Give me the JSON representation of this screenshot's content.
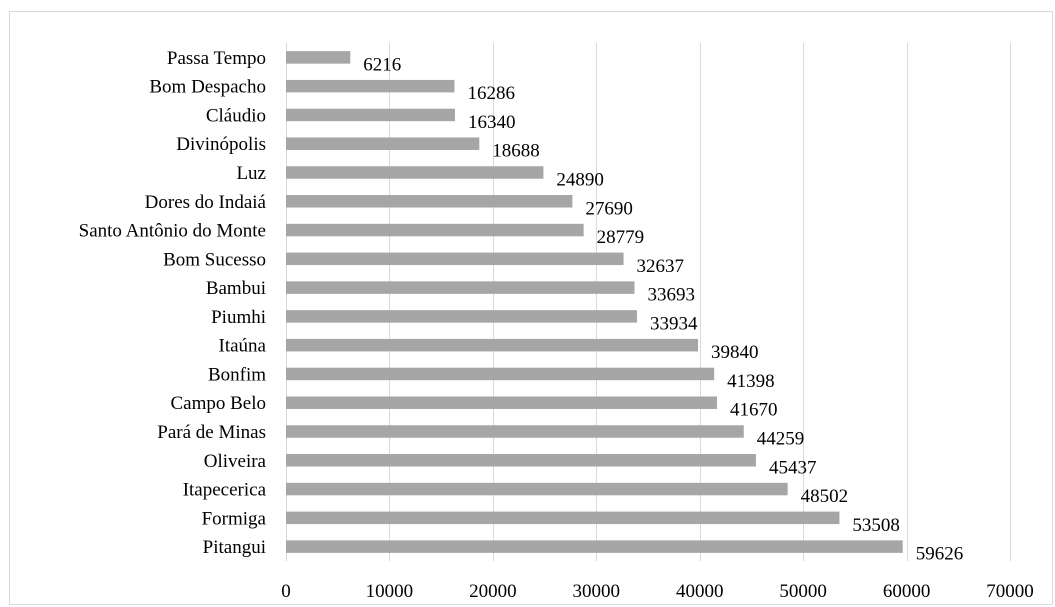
{
  "chart_data": {
    "type": "bar",
    "orientation": "horizontal",
    "title": "",
    "xlabel": "",
    "ylabel": "",
    "categories": [
      "Passa Tempo",
      "Bom Despacho",
      "Cláudio",
      "Divinópolis",
      "Luz",
      "Dores do Indaiá",
      "Santo Antônio do Monte",
      "Bom Sucesso",
      "Bambui",
      "Piumhi",
      "Itaúna",
      "Bonfim",
      "Campo Belo",
      "Pará de Minas",
      "Oliveira",
      "Itapecerica",
      "Formiga",
      "Pitangui"
    ],
    "values": [
      6216,
      16286,
      16340,
      18688,
      24890,
      27690,
      28779,
      32637,
      33693,
      33934,
      39840,
      41398,
      41670,
      44259,
      45437,
      48502,
      53508,
      59626
    ],
    "xlim": [
      0,
      70000
    ],
    "xticks": [
      0,
      10000,
      20000,
      30000,
      40000,
      50000,
      60000,
      70000
    ],
    "grid": "vertical",
    "legend": "none",
    "data_labels": true,
    "bar_color": "#a6a6a6",
    "grid_color": "#d9d9d9"
  }
}
